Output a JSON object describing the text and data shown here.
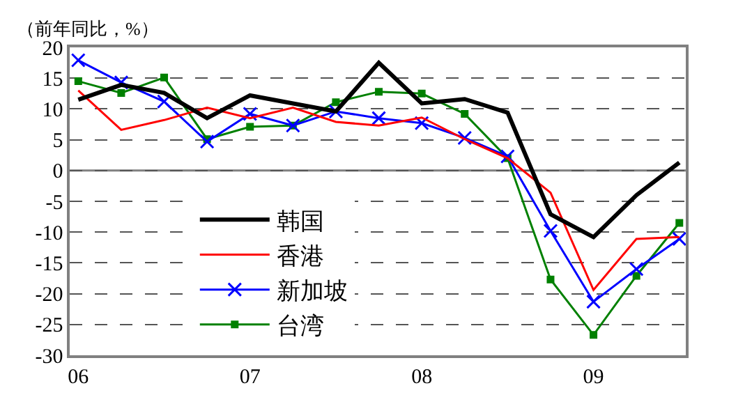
{
  "chart_data": {
    "type": "line",
    "ylabel": "（前年同比，%）",
    "categories": [
      "06",
      null,
      null,
      null,
      "07",
      null,
      null,
      null,
      "08",
      null,
      null,
      null,
      "09",
      null,
      null
    ],
    "ylim": [
      -30,
      20
    ],
    "yticks": [
      -30,
      -25,
      -20,
      -15,
      -10,
      -5,
      0,
      5,
      10,
      15,
      20
    ],
    "grid": "y",
    "legend": "bottom left",
    "ref_lines": [
      {
        "axis": "y",
        "value": 0,
        "label": null,
        "color": "#808080",
        "line_style": "solid"
      }
    ],
    "series": [
      {
        "name": "韩国",
        "color": "#000000",
        "marker": "none",
        "values": [
          11.5,
          13.9,
          12.6,
          8.5,
          12.2,
          10.9,
          9.6,
          17.5,
          10.9,
          11.6,
          9.4,
          -7.1,
          -10.8,
          -4.0,
          1.3
        ]
      },
      {
        "name": "香港",
        "color": "#ff0000",
        "marker": "none",
        "values": [
          13.0,
          6.6,
          8.2,
          10.2,
          8.5,
          10.2,
          7.9,
          7.3,
          8.6,
          5.1,
          2.0,
          -3.6,
          -19.4,
          -11.1,
          -10.8
        ]
      },
      {
        "name": "新加坡",
        "color": "#0000ff",
        "marker": "cross",
        "values": [
          17.9,
          14.3,
          11.2,
          4.7,
          9.2,
          7.3,
          9.6,
          8.5,
          7.7,
          5.3,
          2.3,
          -9.8,
          -21.3,
          -16.0,
          -11.1
        ]
      },
      {
        "name": "台湾",
        "color": "#008000",
        "marker": "square",
        "values": [
          14.5,
          12.6,
          15.1,
          5.1,
          7.1,
          7.3,
          11.1,
          12.8,
          12.5,
          9.2,
          2.0,
          -17.7,
          -26.7,
          -17.1,
          -8.5
        ]
      }
    ]
  }
}
